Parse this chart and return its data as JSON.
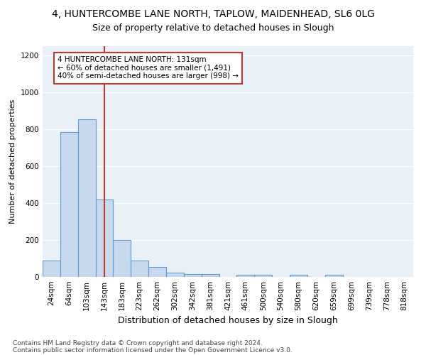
{
  "title1": "4, HUNTERCOMBE LANE NORTH, TAPLOW, MAIDENHEAD, SL6 0LG",
  "title2": "Size of property relative to detached houses in Slough",
  "xlabel": "Distribution of detached houses by size in Slough",
  "ylabel": "Number of detached properties",
  "bins": [
    "24sqm",
    "64sqm",
    "103sqm",
    "143sqm",
    "183sqm",
    "223sqm",
    "262sqm",
    "302sqm",
    "342sqm",
    "381sqm",
    "421sqm",
    "461sqm",
    "500sqm",
    "540sqm",
    "580sqm",
    "620sqm",
    "659sqm",
    "699sqm",
    "739sqm",
    "778sqm",
    "818sqm"
  ],
  "values": [
    90,
    785,
    855,
    420,
    200,
    88,
    52,
    22,
    15,
    15,
    0,
    10,
    10,
    0,
    10,
    0,
    10,
    0,
    0,
    0,
    0
  ],
  "bar_color": "#c9d9ed",
  "bar_edge_color": "#5b9bd5",
  "bar_edge_width": 0.8,
  "vline_x": 3,
  "vline_color": "#c0392b",
  "annotation_text": "4 HUNTERCOMBE LANE NORTH: 131sqm\n← 60% of detached houses are smaller (1,491)\n40% of semi-detached houses are larger (998) →",
  "annotation_box_color": "#ffffff",
  "annotation_box_edge": "#c0392b",
  "ylim": [
    0,
    1250
  ],
  "yticks": [
    0,
    200,
    400,
    600,
    800,
    1000,
    1200
  ],
  "footer1": "Contains HM Land Registry data © Crown copyright and database right 2024.",
  "footer2": "Contains public sector information licensed under the Open Government Licence v3.0.",
  "bg_color": "#eaf0f8",
  "fig_bg_color": "#ffffff",
  "title1_fontsize": 10,
  "title2_fontsize": 9,
  "xlabel_fontsize": 9,
  "ylabel_fontsize": 8,
  "tick_fontsize": 7.5,
  "footer_fontsize": 6.5
}
